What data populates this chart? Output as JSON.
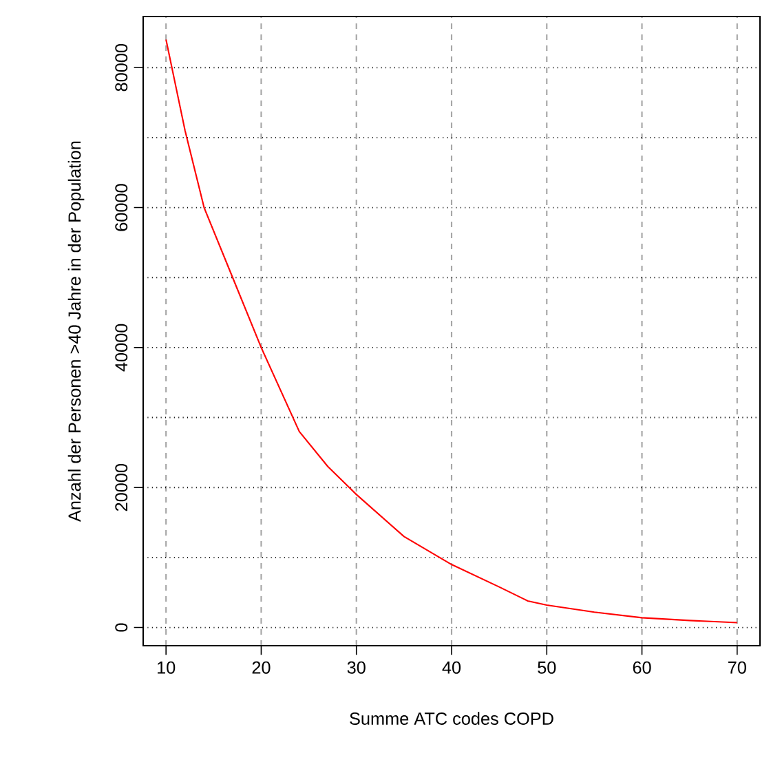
{
  "chart_data": {
    "type": "line",
    "xlabel": "Summe ATC codes COPD",
    "ylabel": "Anzahl der Personen >40 Jahre in der Population",
    "x": [
      10,
      12,
      14,
      17,
      20,
      24,
      27,
      30,
      35,
      40,
      45,
      48,
      50,
      55,
      60,
      65,
      70
    ],
    "series": [
      {
        "color": "#ff0000",
        "values": [
          84000,
          71000,
          60000,
          50000,
          40000,
          28000,
          23000,
          19000,
          13000,
          9000,
          5800,
          3800,
          3200,
          2200,
          1400,
          1000,
          700
        ]
      }
    ],
    "xlim": [
      7.6,
      72.4
    ],
    "ylim": [
      -2600,
      87300
    ],
    "xticks": [
      10,
      20,
      30,
      40,
      50,
      60,
      70
    ],
    "yticks": [
      0,
      {
        "value": 10000,
        "label": null
      },
      20000,
      {
        "value": 30000,
        "label": null
      },
      40000,
      {
        "value": 50000,
        "label": null
      },
      60000,
      {
        "value": 70000,
        "label": null
      },
      80000
    ],
    "grid": true,
    "marker": "none",
    "line_style": "solid"
  }
}
